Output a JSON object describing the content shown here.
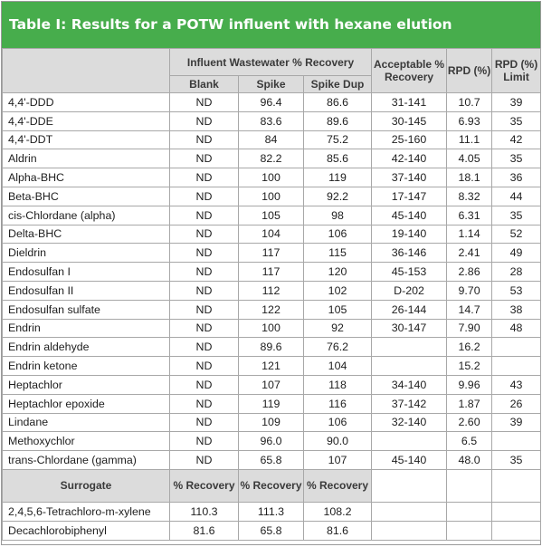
{
  "title": "Table I: Results for a POTW influent with hexane elution",
  "headers": {
    "group": "Influent Wastewater % Recovery",
    "blank": "Blank",
    "spike": "Spike",
    "spike_dup": "Spike Dup",
    "acceptable": "Acceptable % Recovery",
    "rpd": "RPD (%)",
    "rpd_limit": "RPD (%) Limit"
  },
  "rows": [
    {
      "name": "4,4'-DDD",
      "blank": "ND",
      "spike": "96.4",
      "spike_dup": "86.6",
      "acceptable": "31-141",
      "rpd": "10.7",
      "limit": "39"
    },
    {
      "name": "4,4'-DDE",
      "blank": "ND",
      "spike": "83.6",
      "spike_dup": "89.6",
      "acceptable": "30-145",
      "rpd": "6.93",
      "limit": "35"
    },
    {
      "name": "4,4'-DDT",
      "blank": "ND",
      "spike": "84",
      "spike_dup": "75.2",
      "acceptable": "25-160",
      "rpd": "11.1",
      "limit": "42"
    },
    {
      "name": "Aldrin",
      "blank": "ND",
      "spike": "82.2",
      "spike_dup": "85.6",
      "acceptable": "42-140",
      "rpd": "4.05",
      "limit": "35"
    },
    {
      "name": "Alpha-BHC",
      "blank": "ND",
      "spike": "100",
      "spike_dup": "119",
      "acceptable": "37-140",
      "rpd": "18.1",
      "limit": "36"
    },
    {
      "name": "Beta-BHC",
      "blank": "ND",
      "spike": "100",
      "spike_dup": "92.2",
      "acceptable": "17-147",
      "rpd": "8.32",
      "limit": "44"
    },
    {
      "name": "cis-Chlordane (alpha)",
      "blank": "ND",
      "spike": "105",
      "spike_dup": "98",
      "acceptable": "45-140",
      "rpd": "6.31",
      "limit": "35"
    },
    {
      "name": "Delta-BHC",
      "blank": "ND",
      "spike": "104",
      "spike_dup": "106",
      "acceptable": "19-140",
      "rpd": "1.14",
      "limit": "52"
    },
    {
      "name": "Dieldrin",
      "blank": "ND",
      "spike": "117",
      "spike_dup": "115",
      "acceptable": "36-146",
      "rpd": "2.41",
      "limit": "49"
    },
    {
      "name": "Endosulfan I",
      "blank": "ND",
      "spike": "117",
      "spike_dup": "120",
      "acceptable": "45-153",
      "rpd": "2.86",
      "limit": "28"
    },
    {
      "name": "Endosulfan II",
      "blank": "ND",
      "spike": "112",
      "spike_dup": "102",
      "acceptable": "D-202",
      "rpd": "9.70",
      "limit": "53"
    },
    {
      "name": "Endosulfan sulfate",
      "blank": "ND",
      "spike": "122",
      "spike_dup": "105",
      "acceptable": "26-144",
      "rpd": "14.7",
      "limit": "38"
    },
    {
      "name": "Endrin",
      "blank": "ND",
      "spike": "100",
      "spike_dup": "92",
      "acceptable": "30-147",
      "rpd": "7.90",
      "limit": "48"
    },
    {
      "name": "Endrin aldehyde",
      "blank": "ND",
      "spike": "89.6",
      "spike_dup": "76.2",
      "acceptable": "",
      "rpd": "16.2",
      "limit": ""
    },
    {
      "name": "Endrin ketone",
      "blank": "ND",
      "spike": "121",
      "spike_dup": "104",
      "acceptable": "",
      "rpd": "15.2",
      "limit": ""
    },
    {
      "name": "Heptachlor",
      "blank": "ND",
      "spike": "107",
      "spike_dup": "118",
      "acceptable": "34-140",
      "rpd": "9.96",
      "limit": "43"
    },
    {
      "name": "Heptachlor epoxide",
      "blank": "ND",
      "spike": "119",
      "spike_dup": "116",
      "acceptable": "37-142",
      "rpd": "1.87",
      "limit": "26"
    },
    {
      "name": "Lindane",
      "blank": "ND",
      "spike": "109",
      "spike_dup": "106",
      "acceptable": "32-140",
      "rpd": "2.60",
      "limit": "39"
    },
    {
      "name": "Methoxychlor",
      "blank": "ND",
      "spike": "96.0",
      "spike_dup": "90.0",
      "acceptable": "",
      "rpd": "6.5",
      "limit": ""
    },
    {
      "name": "trans-Chlordane (gamma)",
      "blank": "ND",
      "spike": "65.8",
      "spike_dup": "107",
      "acceptable": "45-140",
      "rpd": "48.0",
      "limit": "35"
    }
  ],
  "surrogate": {
    "label": "Surrogate",
    "pct": [
      "% Recovery",
      "% Recovery",
      "% Recovery"
    ],
    "rows": [
      {
        "name": "2,4,5,6-Tetrachloro-m-xylene",
        "v1": "110.3",
        "v2": "111.3",
        "v3": "108.2"
      },
      {
        "name": "Decachlorobiphenyl",
        "v1": "81.6",
        "v2": "65.8",
        "v3": "81.6"
      }
    ]
  }
}
